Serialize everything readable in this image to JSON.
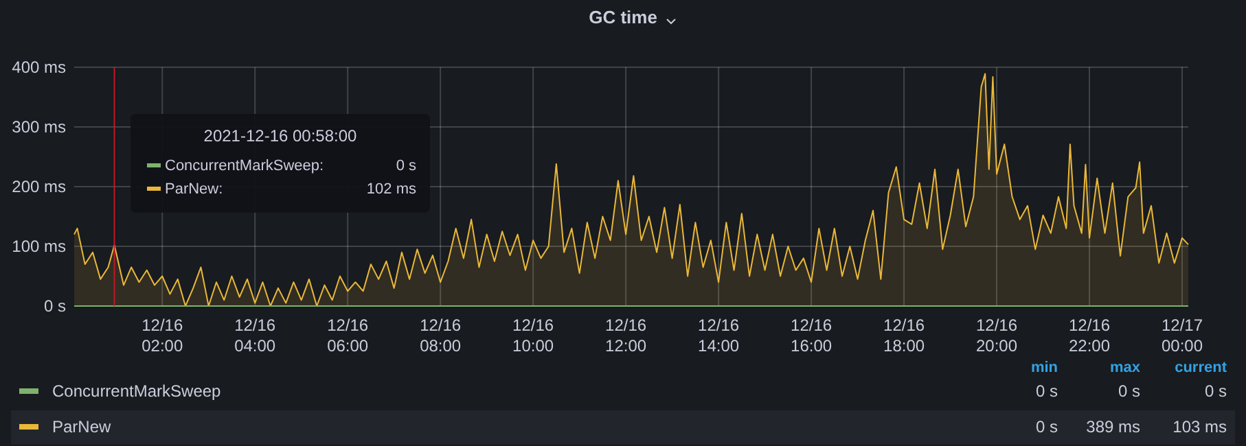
{
  "chart_data": {
    "type": "area",
    "title": "GC time",
    "xlim": [
      "2021-12-16T00:06",
      "2021-12-17T00:08"
    ],
    "xticks": [
      {
        "value": "2021-12-16T02:00",
        "label": "12/16 02:00"
      },
      {
        "value": "2021-12-16T04:00",
        "label": "12/16 04:00"
      },
      {
        "value": "2021-12-16T06:00",
        "label": "12/16 06:00"
      },
      {
        "value": "2021-12-16T08:00",
        "label": "12/16 08:00"
      },
      {
        "value": "2021-12-16T10:00",
        "label": "12/16 10:00"
      },
      {
        "value": "2021-12-16T12:00",
        "label": "12/16 12:00"
      },
      {
        "value": "2021-12-16T14:00",
        "label": "12/16 14:00"
      },
      {
        "value": "2021-12-16T16:00",
        "label": "12/16 16:00"
      },
      {
        "value": "2021-12-16T18:00",
        "label": "12/16 18:00"
      },
      {
        "value": "2021-12-16T20:00",
        "label": "12/16 20:00"
      },
      {
        "value": "2021-12-16T22:00",
        "label": "12/16 22:00"
      },
      {
        "value": "2021-12-17T00:00",
        "label": "12/17 00:00"
      }
    ],
    "ylim": [
      0,
      400
    ],
    "yticks": [
      {
        "value": 0,
        "label": "0 s"
      },
      {
        "value": 100,
        "label": "100 ms"
      },
      {
        "value": 200,
        "label": "200 ms"
      },
      {
        "value": 300,
        "label": "300 ms"
      },
      {
        "value": 400,
        "label": "400 ms"
      }
    ],
    "grid": true,
    "legend": "bottom",
    "ref_lines": [
      {
        "axis": "x",
        "value": "2021-12-16T00:58",
        "color": "#c4162a"
      }
    ],
    "annotations": [
      "2021-12-16 00:58:00",
      "ConcurrentMarkSweep:",
      "0 s",
      "ParNew:",
      "102 ms",
      "min",
      "max",
      "current",
      "0 s",
      "0 s",
      "0 s",
      "0 s",
      "389 ms",
      "103 ms"
    ],
    "series": [
      {
        "name": "ConcurrentMarkSweep",
        "type": "line",
        "color": "#7eb26d",
        "x": [
          "2021-12-16T00:06",
          "2021-12-17T00:08"
        ],
        "values": [
          0,
          0
        ]
      },
      {
        "name": "ParNew",
        "color": "#eab839",
        "x": [
          "2021-12-16T00:06",
          "2021-12-16T00:10",
          "2021-12-16T00:20",
          "2021-12-16T00:30",
          "2021-12-16T00:40",
          "2021-12-16T00:50",
          "2021-12-16T00:58",
          "2021-12-16T01:10",
          "2021-12-16T01:20",
          "2021-12-16T01:30",
          "2021-12-16T01:40",
          "2021-12-16T01:50",
          "2021-12-16T02:00",
          "2021-12-16T02:10",
          "2021-12-16T02:20",
          "2021-12-16T02:30",
          "2021-12-16T02:40",
          "2021-12-16T02:50",
          "2021-12-16T03:00",
          "2021-12-16T03:10",
          "2021-12-16T03:20",
          "2021-12-16T03:30",
          "2021-12-16T03:40",
          "2021-12-16T03:50",
          "2021-12-16T04:00",
          "2021-12-16T04:10",
          "2021-12-16T04:20",
          "2021-12-16T04:30",
          "2021-12-16T04:40",
          "2021-12-16T04:50",
          "2021-12-16T05:00",
          "2021-12-16T05:10",
          "2021-12-16T05:20",
          "2021-12-16T05:30",
          "2021-12-16T05:40",
          "2021-12-16T05:50",
          "2021-12-16T06:00",
          "2021-12-16T06:10",
          "2021-12-16T06:20",
          "2021-12-16T06:30",
          "2021-12-16T06:40",
          "2021-12-16T06:50",
          "2021-12-16T07:00",
          "2021-12-16T07:10",
          "2021-12-16T07:20",
          "2021-12-16T07:30",
          "2021-12-16T07:40",
          "2021-12-16T07:50",
          "2021-12-16T08:00",
          "2021-12-16T08:10",
          "2021-12-16T08:20",
          "2021-12-16T08:30",
          "2021-12-16T08:40",
          "2021-12-16T08:50",
          "2021-12-16T09:00",
          "2021-12-16T09:10",
          "2021-12-16T09:20",
          "2021-12-16T09:30",
          "2021-12-16T09:40",
          "2021-12-16T09:50",
          "2021-12-16T10:00",
          "2021-12-16T10:10",
          "2021-12-16T10:20",
          "2021-12-16T10:30",
          "2021-12-16T10:40",
          "2021-12-16T10:50",
          "2021-12-16T11:00",
          "2021-12-16T11:10",
          "2021-12-16T11:20",
          "2021-12-16T11:30",
          "2021-12-16T11:40",
          "2021-12-16T11:50",
          "2021-12-16T12:00",
          "2021-12-16T12:10",
          "2021-12-16T12:20",
          "2021-12-16T12:30",
          "2021-12-16T12:40",
          "2021-12-16T12:50",
          "2021-12-16T13:00",
          "2021-12-16T13:10",
          "2021-12-16T13:20",
          "2021-12-16T13:30",
          "2021-12-16T13:40",
          "2021-12-16T13:50",
          "2021-12-16T14:00",
          "2021-12-16T14:10",
          "2021-12-16T14:20",
          "2021-12-16T14:30",
          "2021-12-16T14:40",
          "2021-12-16T14:50",
          "2021-12-16T15:00",
          "2021-12-16T15:10",
          "2021-12-16T15:20",
          "2021-12-16T15:30",
          "2021-12-16T15:40",
          "2021-12-16T15:50",
          "2021-12-16T16:00",
          "2021-12-16T16:10",
          "2021-12-16T16:20",
          "2021-12-16T16:30",
          "2021-12-16T16:40",
          "2021-12-16T16:50",
          "2021-12-16T17:00",
          "2021-12-16T17:10",
          "2021-12-16T17:20",
          "2021-12-16T17:30",
          "2021-12-16T17:40",
          "2021-12-16T17:50",
          "2021-12-16T18:00",
          "2021-12-16T18:10",
          "2021-12-16T18:20",
          "2021-12-16T18:30",
          "2021-12-16T18:40",
          "2021-12-16T18:50",
          "2021-12-16T19:00",
          "2021-12-16T19:10",
          "2021-12-16T19:20",
          "2021-12-16T19:30",
          "2021-12-16T19:40",
          "2021-12-16T19:45",
          "2021-12-16T19:50",
          "2021-12-16T19:55",
          "2021-12-16T20:00",
          "2021-12-16T20:10",
          "2021-12-16T20:20",
          "2021-12-16T20:30",
          "2021-12-16T20:40",
          "2021-12-16T20:50",
          "2021-12-16T21:00",
          "2021-12-16T21:10",
          "2021-12-16T21:20",
          "2021-12-16T21:30",
          "2021-12-16T21:35",
          "2021-12-16T21:40",
          "2021-12-16T21:50",
          "2021-12-16T21:55",
          "2021-12-16T22:00",
          "2021-12-16T22:10",
          "2021-12-16T22:20",
          "2021-12-16T22:30",
          "2021-12-16T22:40",
          "2021-12-16T22:50",
          "2021-12-16T23:00",
          "2021-12-16T23:05",
          "2021-12-16T23:10",
          "2021-12-16T23:20",
          "2021-12-16T23:30",
          "2021-12-16T23:40",
          "2021-12-16T23:50",
          "2021-12-17T00:00",
          "2021-12-17T00:08"
        ],
        "values": [
          120,
          130,
          70,
          90,
          45,
          65,
          102,
          35,
          65,
          40,
          60,
          35,
          50,
          20,
          45,
          0,
          30,
          65,
          0,
          40,
          10,
          50,
          15,
          45,
          5,
          40,
          0,
          30,
          5,
          40,
          10,
          45,
          0,
          35,
          10,
          50,
          25,
          40,
          25,
          70,
          45,
          75,
          30,
          90,
          45,
          95,
          55,
          85,
          40,
          75,
          130,
          80,
          145,
          65,
          120,
          75,
          125,
          85,
          120,
          60,
          110,
          80,
          100,
          238,
          90,
          130,
          55,
          140,
          80,
          150,
          110,
          210,
          120,
          218,
          110,
          150,
          90,
          165,
          80,
          170,
          50,
          140,
          65,
          110,
          40,
          140,
          60,
          155,
          50,
          120,
          60,
          120,
          50,
          100,
          60,
          80,
          40,
          130,
          60,
          130,
          50,
          100,
          45,
          110,
          160,
          45,
          190,
          233,
          145,
          137,
          206,
          130,
          229,
          95,
          152,
          229,
          133,
          183,
          367,
          389,
          229,
          384,
          221,
          271,
          183,
          145,
          168,
          95,
          152,
          122,
          183,
          130,
          271,
          168,
          122,
          237,
          114,
          214,
          122,
          206,
          84,
          183,
          198,
          241,
          122,
          168,
          72,
          122,
          72,
          114,
          103
        ]
      }
    ]
  }
}
